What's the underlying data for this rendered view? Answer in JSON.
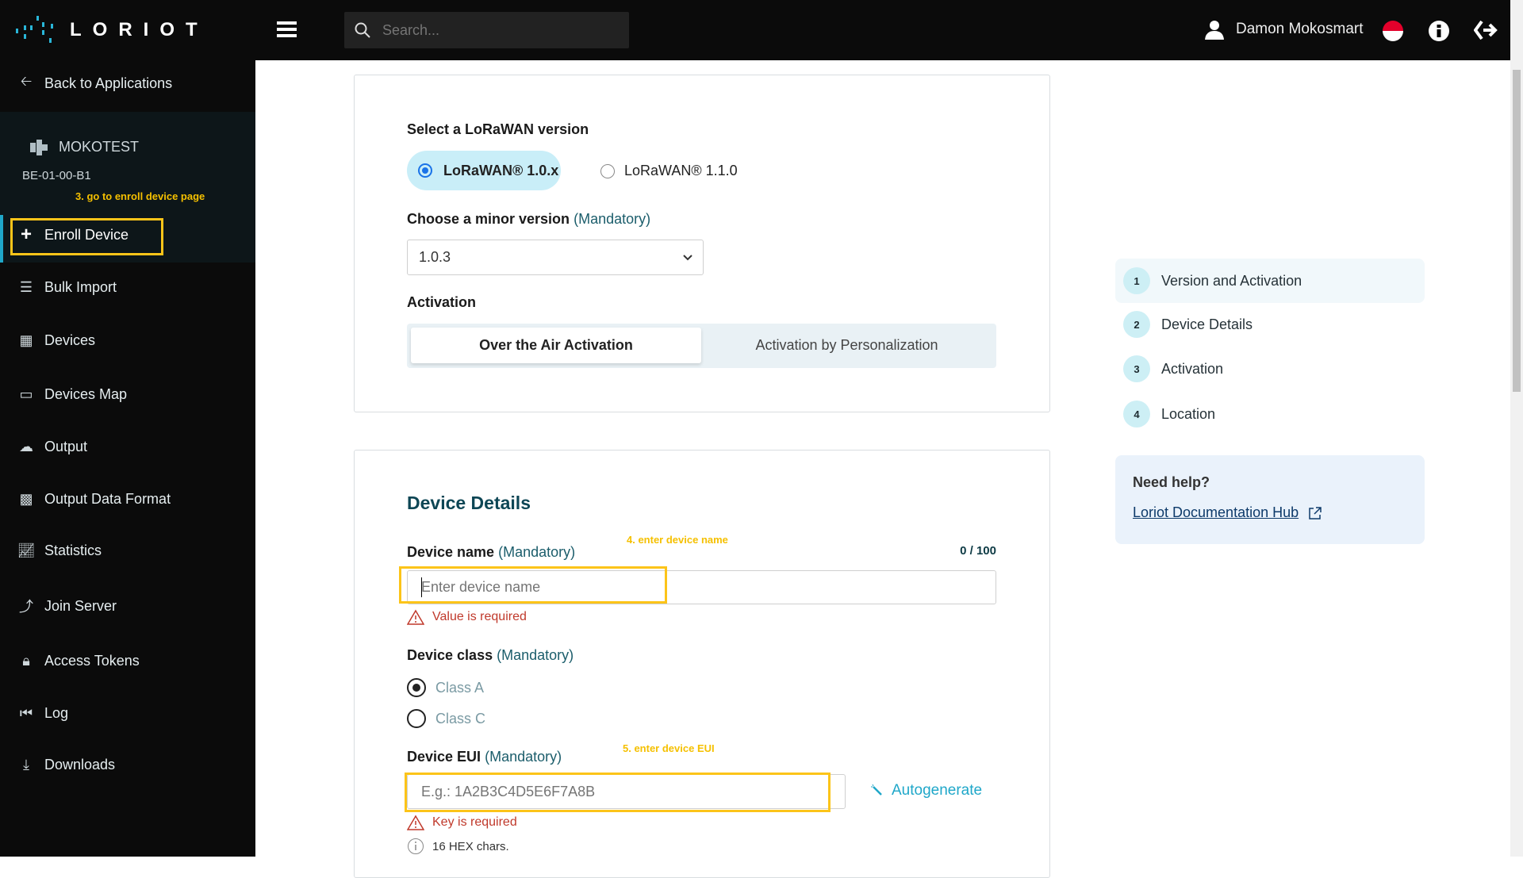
{
  "topbar": {
    "logo_text": "LORIOT",
    "search_placeholder": "Search...",
    "user_name": "Damon Mokosmart",
    "icons": [
      "menu-icon",
      "search-icon",
      "user-icon",
      "singapore-flag-icon",
      "info-icon",
      "logout-arrow-icon"
    ]
  },
  "sidebar": {
    "back_label": "Back to Applications",
    "app_name": "MOKOTEST",
    "app_id": "BE-01-00-B1",
    "annotation": "3. go to enroll device page",
    "items": [
      {
        "label": "Enroll Device",
        "icon": "plus-icon",
        "active": true
      },
      {
        "label": "Bulk Import",
        "icon": "list-icon"
      },
      {
        "label": "Devices",
        "icon": "devices-icon"
      },
      {
        "label": "Devices Map",
        "icon": "map-icon"
      },
      {
        "label": "Output",
        "icon": "cloud-upload-icon"
      },
      {
        "label": "Output Data Format",
        "icon": "puzzle-icon"
      },
      {
        "label": "Statistics",
        "icon": "chart-icon"
      },
      {
        "label": "Join Server",
        "icon": "join-icon"
      },
      {
        "label": "Access Tokens",
        "icon": "lock-icon"
      },
      {
        "label": "Log",
        "icon": "rewind-icon"
      },
      {
        "label": "Downloads",
        "icon": "download-icon"
      }
    ]
  },
  "version_card": {
    "title": "Select a LoRaWAN version",
    "options": [
      "LoRaWAN® 1.0.x",
      "LoRaWAN® 1.1.0"
    ],
    "selected": "LoRaWAN® 1.0.x",
    "minor_label": "Choose a minor version",
    "mandatory": "(Mandatory)",
    "minor_value": "1.0.3",
    "activation_label": "Activation",
    "activation_tabs": [
      "Over the Air Activation",
      "Activation by Personalization"
    ],
    "activation_selected": "Over the Air Activation"
  },
  "details_card": {
    "title": "Device Details",
    "annotation_name": "4. enter device name",
    "name_label": "Device name",
    "name_counter": "0 / 100",
    "name_placeholder": "Enter device name",
    "name_error": "Value is required",
    "class_label": "Device class",
    "class_options": [
      "Class A",
      "Class C"
    ],
    "class_selected": "Class A",
    "annotation_eui": "5. enter device EUI",
    "eui_label": "Device EUI",
    "eui_placeholder": "E.g.: 1A2B3C4D5E6F7A8B",
    "autogenerate": "Autogenerate",
    "eui_error": "Key is required",
    "eui_hint": "16 HEX chars."
  },
  "steps": [
    {
      "num": "1",
      "label": "Version and Activation",
      "active": true
    },
    {
      "num": "2",
      "label": "Device Details"
    },
    {
      "num": "3",
      "label": "Activation"
    },
    {
      "num": "4",
      "label": "Location"
    }
  ],
  "help": {
    "title": "Need help?",
    "link": "Loriot Documentation Hub"
  },
  "colors": {
    "accent": "#1fa7c9",
    "annotation": "#f5c000",
    "error": "#c0392b",
    "sidebar_bg": "#0b0b0b"
  }
}
